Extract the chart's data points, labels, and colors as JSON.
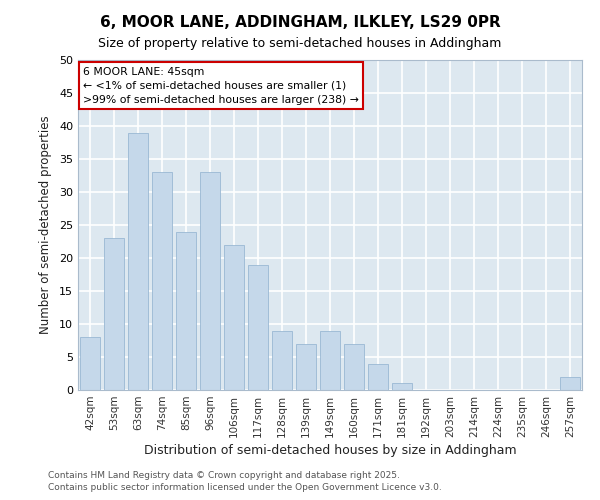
{
  "title": "6, MOOR LANE, ADDINGHAM, ILKLEY, LS29 0PR",
  "subtitle": "Size of property relative to semi-detached houses in Addingham",
  "xlabel": "Distribution of semi-detached houses by size in Addingham",
  "ylabel": "Number of semi-detached properties",
  "categories": [
    "42sqm",
    "53sqm",
    "63sqm",
    "74sqm",
    "85sqm",
    "96sqm",
    "106sqm",
    "117sqm",
    "128sqm",
    "139sqm",
    "149sqm",
    "160sqm",
    "171sqm",
    "181sqm",
    "192sqm",
    "203sqm",
    "214sqm",
    "224sqm",
    "235sqm",
    "246sqm",
    "257sqm"
  ],
  "values": [
    8,
    23,
    39,
    33,
    24,
    33,
    22,
    19,
    9,
    7,
    9,
    7,
    4,
    1,
    0,
    0,
    0,
    0,
    0,
    0,
    2
  ],
  "bar_color": "#c5d8ea",
  "bar_edge_color": "#9ab8d4",
  "fig_background_color": "#ffffff",
  "axes_background_color": "#dde8f0",
  "grid_color": "#ffffff",
  "annotation_title": "6 MOOR LANE: 45sqm",
  "annotation_line1": "← <1% of semi-detached houses are smaller (1)",
  "annotation_line2": ">99% of semi-detached houses are larger (238) →",
  "annotation_box_color": "#ffffff",
  "annotation_border_color": "#cc0000",
  "ylim": [
    0,
    50
  ],
  "yticks": [
    0,
    5,
    10,
    15,
    20,
    25,
    30,
    35,
    40,
    45,
    50
  ],
  "footer1": "Contains HM Land Registry data © Crown copyright and database right 2025.",
  "footer2": "Contains public sector information licensed under the Open Government Licence v3.0."
}
